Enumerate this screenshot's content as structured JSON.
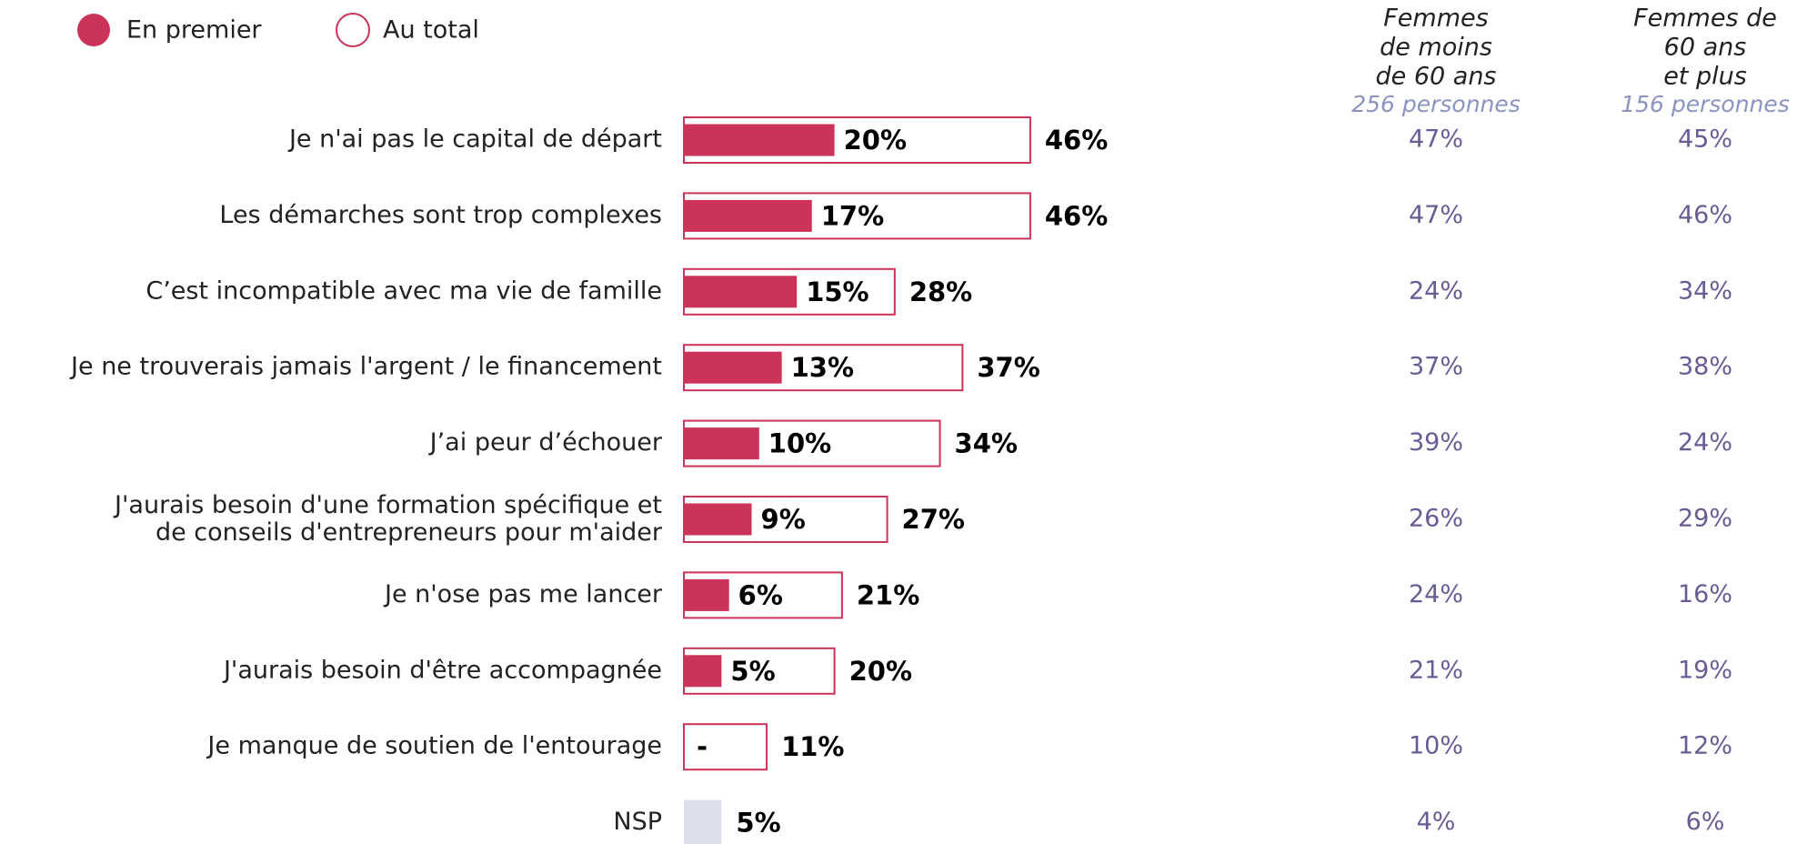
{
  "chart_data": {
    "type": "bar",
    "categories": [
      "Je n'ai pas le capital de départ",
      "Les démarches sont trop complexes",
      "C’est incompatible avec ma vie de famille",
      "Je ne trouverais jamais l'argent / le financement",
      "J’ai peur d’échouer",
      "J'aurais besoin d'une formation spécifique et\nde conseils d'entrepreneurs pour m'aider",
      "Je n'ose pas me lancer",
      "J'aurais besoin d'être accompagnée",
      "Je manque de soutien de l'entourage",
      "NSP"
    ],
    "series": [
      {
        "name": "En premier",
        "color": "#cc3358",
        "values": [
          20,
          17,
          15,
          13,
          10,
          9,
          6,
          5,
          null,
          null
        ],
        "value_labels": [
          "20%",
          "17%",
          "15%",
          "13%",
          "10%",
          "9%",
          "6%",
          "5%",
          "-",
          null
        ]
      },
      {
        "name": "Au total",
        "color": "#cc3358",
        "values": [
          46,
          46,
          28,
          37,
          34,
          27,
          21,
          20,
          11,
          5
        ],
        "value_labels": [
          "46%",
          "46%",
          "28%",
          "37%",
          "34%",
          "27%",
          "21%",
          "20%",
          "11%",
          "5%"
        ],
        "point_colors": [
          null,
          null,
          null,
          null,
          null,
          null,
          null,
          null,
          null,
          "#dcdfec"
        ]
      }
    ],
    "columns": [
      {
        "title": [
          "Femmes",
          "de moins",
          "de 60 ans"
        ],
        "subtitle": "256 personnes",
        "values": [
          47,
          47,
          24,
          37,
          39,
          26,
          24,
          21,
          10,
          4
        ],
        "value_labels": [
          "47%",
          "47%",
          "24%",
          "37%",
          "39%",
          "26%",
          "24%",
          "21%",
          "10%",
          "4%"
        ]
      },
      {
        "title": [
          "Femmes de",
          "60 ans",
          "et plus"
        ],
        "subtitle": "156 personnes",
        "values": [
          45,
          46,
          34,
          38,
          24,
          29,
          16,
          19,
          12,
          6
        ],
        "value_labels": [
          "45%",
          "46%",
          "34%",
          "38%",
          "24%",
          "29%",
          "16%",
          "19%",
          "12%",
          "6%"
        ]
      }
    ]
  }
}
